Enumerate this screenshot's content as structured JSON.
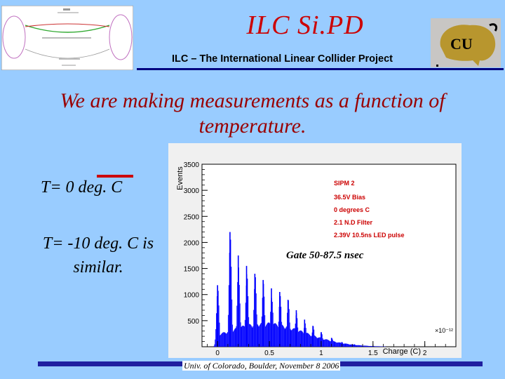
{
  "header": {
    "title": "ILC Si.PD",
    "subtitle": "ILC – The International Linear Collider Project",
    "diagram_label": "ILC layout diagram",
    "logo_text": "CU"
  },
  "body": {
    "statement": "We are making measurements as a function of temperature.",
    "temp_0": "T= 0 deg. C",
    "temp_minus10": "T= -10 deg. C is similar."
  },
  "chart_data": {
    "type": "histogram",
    "title": "SIPM 2",
    "ylabel": "Events",
    "xlabel": "Charge (C)",
    "x_exponent": "×10⁻¹²",
    "xlim": [
      -0.15,
      2.3
    ],
    "ylim": [
      0,
      3500
    ],
    "x_ticks": [
      "0",
      "0.5",
      "1",
      "1.5",
      "2"
    ],
    "y_ticks": [
      "500",
      "1000",
      "1500",
      "2000",
      "2500",
      "3000",
      "3500"
    ],
    "legend": [
      "36.5V Bias",
      "0 degrees C",
      "2.1 N.D Filter",
      "2.39V 10.5ns LED pulse"
    ],
    "annotation": "Gate 50-87.5 nsec",
    "peaks": [
      {
        "x": 0.0,
        "y": 1180
      },
      {
        "x": 0.12,
        "y": 2200
      },
      {
        "x": 0.2,
        "y": 1750
      },
      {
        "x": 0.28,
        "y": 1550
      },
      {
        "x": 0.36,
        "y": 1400
      },
      {
        "x": 0.44,
        "y": 1280
      },
      {
        "x": 0.52,
        "y": 1120
      },
      {
        "x": 0.6,
        "y": 1050
      },
      {
        "x": 0.68,
        "y": 900
      },
      {
        "x": 0.76,
        "y": 700
      },
      {
        "x": 0.84,
        "y": 520
      },
      {
        "x": 0.92,
        "y": 400
      },
      {
        "x": 1.0,
        "y": 280
      },
      {
        "x": 1.1,
        "y": 170
      },
      {
        "x": 1.2,
        "y": 90
      },
      {
        "x": 1.32,
        "y": 45
      },
      {
        "x": 1.5,
        "y": 15
      }
    ],
    "colors": {
      "bars": "#0000ff",
      "legend": "#cc0000",
      "plot_bg": "#ffffff"
    }
  },
  "footer": {
    "text": "Univ. of Colorado, Boulder, November 8 2006"
  },
  "colors": {
    "background": "#99ccff",
    "title": "#cc0000",
    "statement": "#990000",
    "rule": "#000080"
  }
}
